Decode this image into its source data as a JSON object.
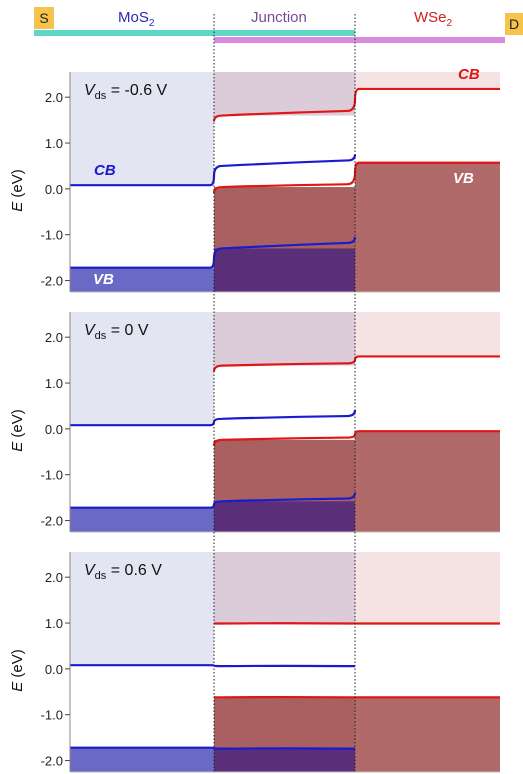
{
  "header": {
    "source_label": "S",
    "drain_label": "D",
    "region_left": {
      "main": "MoS",
      "sub": "2",
      "color": "#2a2ab8"
    },
    "region_mid": {
      "main": "Junction",
      "color": "#7a4a9a"
    },
    "region_right": {
      "main": "WSe",
      "sub": "2",
      "color": "#d02020"
    },
    "bar_mos2_color": "#5fd6c8",
    "bar_wse2_color": "#d98be0"
  },
  "colors": {
    "mos2_band": "#1a1ad0",
    "wse2_band": "#e01515",
    "mos2_shade": "#e3e5f3",
    "mos2_vb_fill": "#6a6ac6",
    "junction_top_fill": "#dccbd9",
    "junction_vb_fill": "#a86060",
    "junction_overlap_fill": "#5a2e78",
    "wse2_top_fill": "#f5e3e3",
    "wse2_vb_fill": "#b06a6a",
    "vb_label_color": "#ffffff"
  },
  "chart_data": {
    "type": "line",
    "description_units": "energy in eV",
    "ylabel_italic": "E",
    "ylabel_unit": "(eV)",
    "yticks": [
      "2.0",
      "1.0",
      "0.0",
      "-1.0",
      "-2.0"
    ],
    "ytick_values": [
      2.0,
      1.0,
      0.0,
      -1.0,
      -2.0
    ],
    "ylim": [
      -2.25,
      2.55
    ],
    "regions": [
      "MoS2",
      "Junction",
      "WSe2"
    ],
    "panels": [
      {
        "vds_label": "= -0.6 V",
        "vds": -0.6,
        "labels": {
          "mos2_cb": "CB",
          "mos2_vb": "VB",
          "wse2_cb": "CB",
          "wse2_vb": "VB"
        },
        "mos2_cb": {
          "left": 0.08,
          "right": 0.08,
          "junction_left": 0.5,
          "junction_right": 0.62
        },
        "mos2_vb": {
          "left": -1.72,
          "right": -1.72,
          "junction_left": -1.3,
          "junction_right": -1.18
        },
        "wse2_cb": {
          "junction_left": 1.6,
          "junction_right": 1.7,
          "right": 2.18
        },
        "wse2_vb": {
          "junction_left": 0.04,
          "junction_right": 0.1,
          "right": 0.57
        }
      },
      {
        "vds_label": "= 0 V",
        "vds": 0,
        "labels": {},
        "mos2_cb": {
          "left": 0.08,
          "right": 0.08,
          "junction_left": 0.22,
          "junction_right": 0.28
        },
        "mos2_vb": {
          "left": -1.72,
          "right": -1.72,
          "junction_left": -1.58,
          "junction_right": -1.52
        },
        "wse2_cb": {
          "junction_left": 1.38,
          "junction_right": 1.43,
          "right": 1.58
        },
        "wse2_vb": {
          "junction_left": -0.24,
          "junction_right": -0.19,
          "right": -0.05
        }
      },
      {
        "vds_label": "= 0.6 V",
        "vds": 0.6,
        "labels": {},
        "mos2_cb": {
          "left": 0.08,
          "right": 0.08,
          "junction_left": 0.06,
          "junction_right": 0.06
        },
        "mos2_vb": {
          "left": -1.72,
          "right": -1.72,
          "junction_left": -1.74,
          "junction_right": -1.74
        },
        "wse2_cb": {
          "junction_left": 0.99,
          "junction_right": 0.99,
          "right": 0.99
        },
        "wse2_vb": {
          "junction_left": -0.62,
          "junction_right": -0.62,
          "right": -0.62
        }
      }
    ]
  }
}
